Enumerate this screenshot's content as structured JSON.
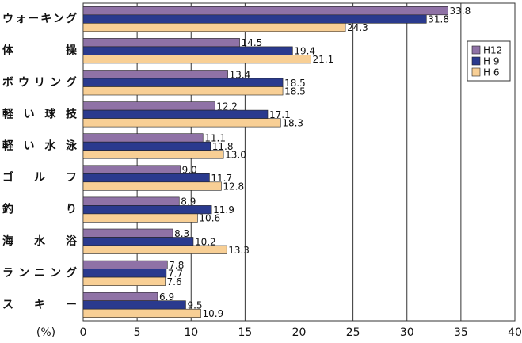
{
  "chart_data": {
    "type": "bar",
    "orientation": "horizontal",
    "x_label": "(%)",
    "categories": [
      "ウォーキング",
      "体操",
      "ボウリング",
      "軽い球技",
      "軽い水泳",
      "ゴルフ",
      "釣り",
      "海水浴",
      "ランニング",
      "スキー"
    ],
    "series": [
      {
        "name": "H12",
        "color": "#8f72a6",
        "values": [
          33.8,
          14.5,
          13.4,
          12.2,
          11.1,
          9.0,
          8.9,
          8.3,
          7.8,
          6.9
        ],
        "value_labels": [
          "33.8",
          "14.5",
          "13.4",
          "12.2",
          "11.1",
          "9.0",
          "8.9",
          "8.3",
          "7.8",
          "6.9"
        ]
      },
      {
        "name": "H 9",
        "color": "#2a3a8e",
        "values": [
          31.8,
          19.4,
          18.5,
          17.1,
          11.8,
          11.7,
          11.9,
          10.2,
          7.7,
          9.5
        ],
        "value_labels": [
          "31.8",
          "19.4",
          "18.5",
          "17.1",
          "11.8",
          "11.7",
          "11.9",
          "10.2",
          "7.7",
          "9.5"
        ]
      },
      {
        "name": "H 6",
        "color": "#f8cf95",
        "values": [
          24.3,
          21.1,
          18.5,
          18.3,
          13.0,
          12.8,
          10.6,
          13.3,
          7.6,
          10.9
        ],
        "value_labels": [
          "24.3",
          "21.1",
          "18.5",
          "18.3",
          "13.0",
          "12.8",
          "10.6",
          "13.3",
          "7.6",
          "10.9"
        ]
      }
    ],
    "xlim": [
      0,
      40
    ],
    "xticks": [
      0,
      5,
      10,
      15,
      20,
      25,
      30,
      35,
      40
    ],
    "grid": true,
    "legend": "right"
  }
}
